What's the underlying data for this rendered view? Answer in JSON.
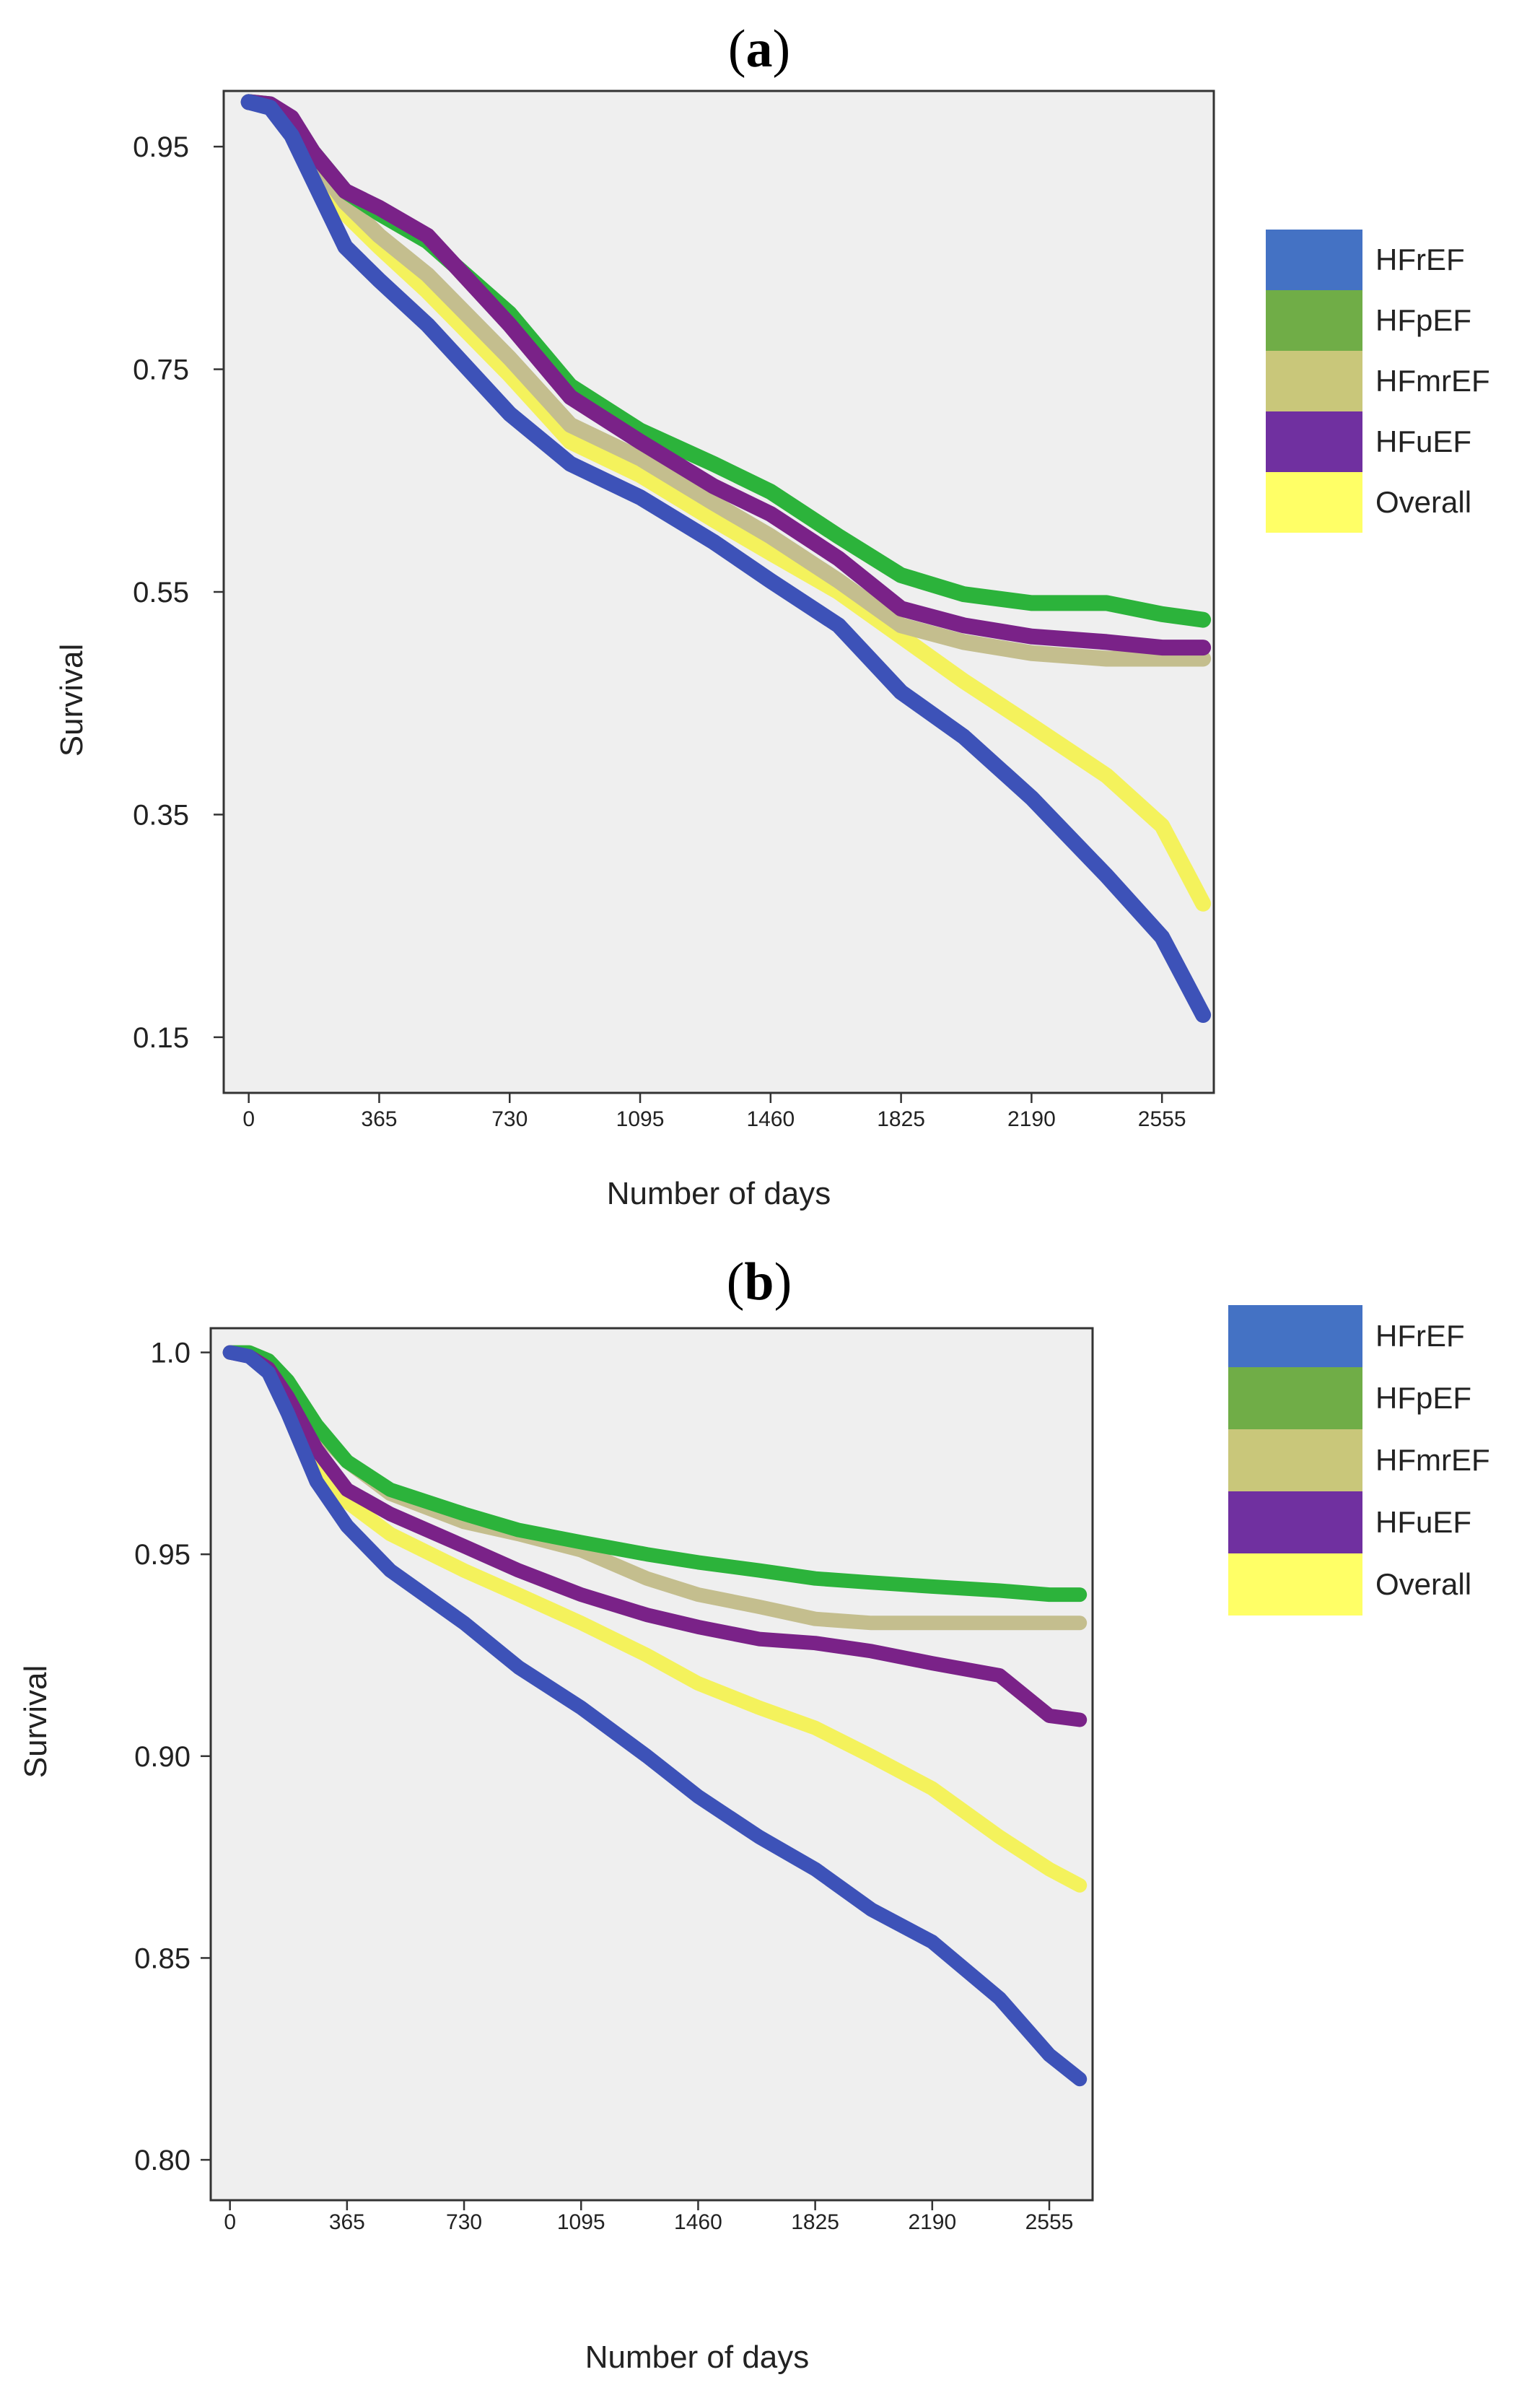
{
  "chart_data": [
    {
      "panel_label": "a",
      "type": "line",
      "xlabel": "Number of days",
      "ylabel": "Survival",
      "xlim": [
        -70,
        2700
      ],
      "ylim": [
        0.1,
        1.0
      ],
      "xticks": [
        0,
        365,
        730,
        1095,
        1460,
        1825,
        2190,
        2555
      ],
      "yticks": [
        0.15,
        0.35,
        0.55,
        0.75,
        0.95
      ],
      "ytick_labels": [
        "0.15",
        "0.35",
        "0.55",
        "0.75",
        "0.95"
      ],
      "legend_position": "right",
      "series": [
        {
          "name": "HFrEF",
          "color": "#4472c4",
          "line_color": "#3d52b8",
          "x": [
            0,
            60,
            120,
            180,
            270,
            365,
            500,
            730,
            900,
            1095,
            1300,
            1460,
            1650,
            1825,
            2000,
            2190,
            2400,
            2555,
            2670
          ],
          "y": [
            0.99,
            0.985,
            0.96,
            0.92,
            0.86,
            0.83,
            0.79,
            0.71,
            0.665,
            0.635,
            0.595,
            0.56,
            0.52,
            0.46,
            0.42,
            0.365,
            0.295,
            0.24,
            0.17
          ]
        },
        {
          "name": "HFpEF",
          "color": "#70ad47",
          "line_color": "#2cb33b",
          "x": [
            0,
            60,
            120,
            180,
            270,
            365,
            500,
            730,
            900,
            1095,
            1300,
            1460,
            1650,
            1825,
            2000,
            2190,
            2400,
            2555,
            2670
          ],
          "y": [
            0.99,
            0.988,
            0.975,
            0.945,
            0.91,
            0.89,
            0.865,
            0.8,
            0.735,
            0.695,
            0.665,
            0.64,
            0.6,
            0.565,
            0.548,
            0.54,
            0.54,
            0.53,
            0.525
          ]
        },
        {
          "name": "HFmrEF",
          "color": "#c9c77a",
          "line_color": "#c4be8e",
          "x": [
            0,
            60,
            120,
            180,
            270,
            365,
            500,
            730,
            900,
            1095,
            1300,
            1460,
            1650,
            1825,
            2000,
            2190,
            2400,
            2555,
            2670
          ],
          "y": [
            0.99,
            0.987,
            0.972,
            0.94,
            0.9,
            0.87,
            0.835,
            0.76,
            0.7,
            0.67,
            0.63,
            0.6,
            0.56,
            0.52,
            0.505,
            0.495,
            0.49,
            0.49,
            0.49
          ]
        },
        {
          "name": "HFuEF",
          "color": "#7030a0",
          "line_color": "#7a2288",
          "x": [
            0,
            60,
            120,
            180,
            270,
            365,
            500,
            730,
            900,
            1095,
            1300,
            1460,
            1650,
            1825,
            2000,
            2190,
            2400,
            2555,
            2670
          ],
          "y": [
            0.99,
            0.988,
            0.976,
            0.945,
            0.91,
            0.895,
            0.87,
            0.79,
            0.725,
            0.685,
            0.645,
            0.62,
            0.58,
            0.535,
            0.52,
            0.51,
            0.505,
            0.5,
            0.5
          ]
        },
        {
          "name": "Overall",
          "color": "#ffff66",
          "line_color": "#f4f25c",
          "x": [
            0,
            60,
            120,
            180,
            270,
            365,
            500,
            730,
            900,
            1095,
            1300,
            1460,
            1650,
            1825,
            2000,
            2190,
            2400,
            2555,
            2670
          ],
          "y": [
            0.99,
            0.987,
            0.968,
            0.935,
            0.89,
            0.86,
            0.82,
            0.745,
            0.685,
            0.655,
            0.615,
            0.585,
            0.55,
            0.51,
            0.47,
            0.43,
            0.385,
            0.34,
            0.27
          ]
        }
      ]
    },
    {
      "panel_label": "b",
      "type": "line",
      "xlabel": "Number of days",
      "ylabel": "Survival",
      "xlim": [
        -60,
        2690
      ],
      "ylim": [
        0.79,
        1.006
      ],
      "xticks": [
        0,
        365,
        730,
        1095,
        1460,
        1825,
        2190,
        2555
      ],
      "yticks": [
        0.8,
        0.85,
        0.9,
        0.95,
        1.0
      ],
      "ytick_labels": [
        "0.80",
        "0.85",
        "0.90",
        "0.95",
        "1.0"
      ],
      "legend_position": "right",
      "series": [
        {
          "name": "HFrEF",
          "color": "#4472c4",
          "line_color": "#3d52b8",
          "x": [
            0,
            60,
            120,
            180,
            270,
            365,
            500,
            730,
            900,
            1095,
            1300,
            1460,
            1650,
            1825,
            2000,
            2190,
            2400,
            2555,
            2650
          ],
          "y": [
            1.0,
            0.999,
            0.995,
            0.985,
            0.968,
            0.957,
            0.946,
            0.933,
            0.922,
            0.912,
            0.9,
            0.89,
            0.88,
            0.872,
            0.862,
            0.854,
            0.84,
            0.826,
            0.82
          ]
        },
        {
          "name": "HFpEF",
          "color": "#70ad47",
          "line_color": "#2cb33b",
          "x": [
            0,
            60,
            120,
            180,
            270,
            365,
            500,
            730,
            900,
            1095,
            1300,
            1460,
            1650,
            1825,
            2000,
            2190,
            2400,
            2555,
            2650
          ],
          "y": [
            1.0,
            1.0,
            0.998,
            0.993,
            0.982,
            0.973,
            0.966,
            0.96,
            0.956,
            0.953,
            0.95,
            0.948,
            0.946,
            0.944,
            0.943,
            0.942,
            0.941,
            0.94,
            0.94
          ]
        },
        {
          "name": "HFmrEF",
          "color": "#c9c77a",
          "line_color": "#c4be8e",
          "x": [
            0,
            60,
            120,
            180,
            270,
            365,
            500,
            730,
            900,
            1095,
            1300,
            1460,
            1650,
            1825,
            2000,
            2190,
            2400,
            2555,
            2650
          ],
          "y": [
            1.0,
            1.0,
            0.998,
            0.992,
            0.981,
            0.973,
            0.965,
            0.958,
            0.955,
            0.951,
            0.944,
            0.94,
            0.937,
            0.934,
            0.933,
            0.933,
            0.933,
            0.933,
            0.933
          ]
        },
        {
          "name": "HFuEF",
          "color": "#7030a0",
          "line_color": "#7a2288",
          "x": [
            0,
            60,
            120,
            180,
            270,
            365,
            500,
            730,
            900,
            1095,
            1300,
            1460,
            1650,
            1825,
            2000,
            2190,
            2400,
            2555,
            2650
          ],
          "y": [
            1.0,
            0.999,
            0.996,
            0.989,
            0.976,
            0.966,
            0.96,
            0.952,
            0.946,
            0.94,
            0.935,
            0.932,
            0.929,
            0.928,
            0.926,
            0.923,
            0.92,
            0.91,
            0.909
          ]
        },
        {
          "name": "Overall",
          "color": "#ffff66",
          "line_color": "#f4f25c",
          "x": [
            0,
            60,
            120,
            180,
            270,
            365,
            500,
            730,
            900,
            1095,
            1300,
            1460,
            1650,
            1825,
            2000,
            2190,
            2400,
            2555,
            2650
          ],
          "y": [
            1.0,
            1.0,
            0.997,
            0.99,
            0.974,
            0.963,
            0.955,
            0.946,
            0.94,
            0.933,
            0.925,
            0.918,
            0.912,
            0.907,
            0.9,
            0.892,
            0.88,
            0.872,
            0.868
          ]
        }
      ]
    }
  ]
}
